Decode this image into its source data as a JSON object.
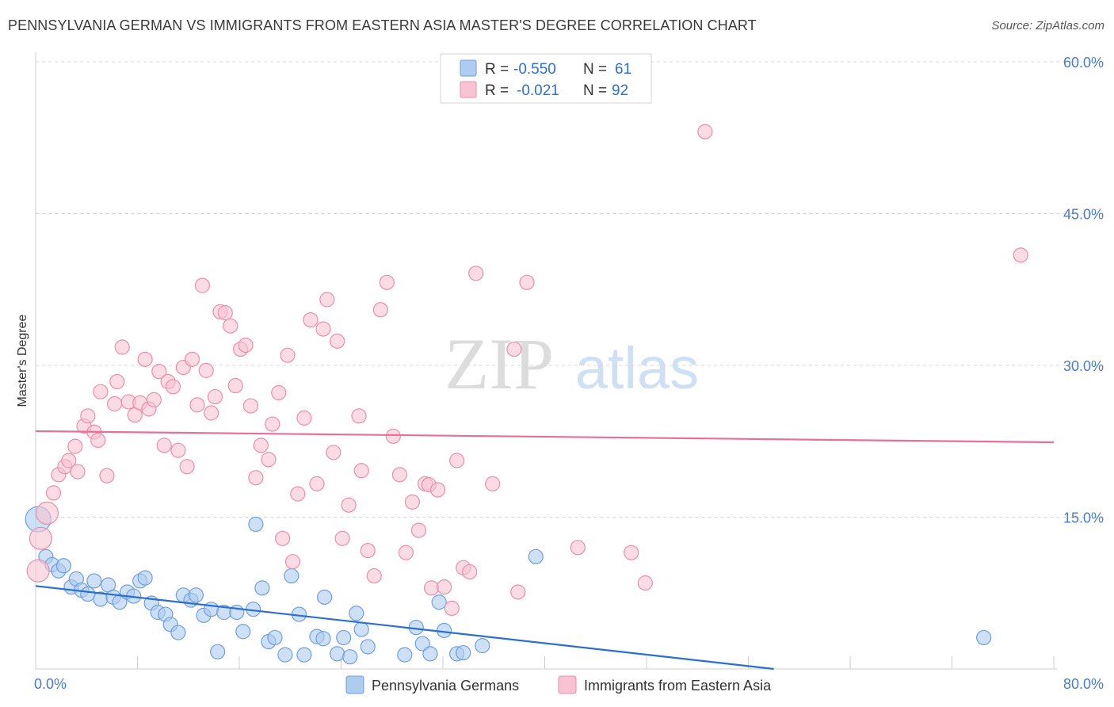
{
  "chart_data": {
    "type": "scatter",
    "title": "PENNSYLVANIA GERMAN VS IMMIGRANTS FROM EASTERN ASIA MASTER'S DEGREE CORRELATION CHART",
    "source": "Source: ZipAtlas.com",
    "xlabel": "",
    "ylabel": "Master's Degree",
    "xlim": [
      0,
      80
    ],
    "ylim": [
      0,
      60
    ],
    "x_tick_labels": [
      "0.0%",
      "80.0%"
    ],
    "y_ticks": [
      15,
      30,
      45,
      60
    ],
    "y_tick_labels": [
      "15.0%",
      "30.0%",
      "45.0%",
      "60.0%"
    ],
    "watermark": {
      "zip": "ZIP",
      "atlas": "atlas"
    },
    "legend": {
      "rows": [
        {
          "r_label": "R =",
          "r_value": "-0.550",
          "n_label": "N =",
          "n_value": "61"
        },
        {
          "r_label": "R =",
          "r_value": "-0.021",
          "n_label": "N =",
          "n_value": "92"
        }
      ]
    },
    "colors": {
      "blue_fill": "#aecbf0",
      "blue_stroke": "#6f9fde",
      "blue_line": "#2a6fcf",
      "pink_fill": "#f8c3d2",
      "pink_stroke": "#ec8eab",
      "pink_line": "#e5709a",
      "grid": "#d8d8d8",
      "tick_text": "#4a7bc8"
    },
    "series": [
      {
        "name": "Pennsylvania Germans",
        "trend": {
          "x0": 0,
          "y0": 8.2,
          "x1": 58,
          "y1": 0
        },
        "points": [
          [
            0.2,
            14.8
          ],
          [
            0.8,
            11.1
          ],
          [
            1.3,
            10.3
          ],
          [
            1.8,
            9.7
          ],
          [
            2.2,
            10.2
          ],
          [
            2.8,
            8.1
          ],
          [
            3.2,
            8.9
          ],
          [
            3.6,
            7.8
          ],
          [
            4.1,
            7.4
          ],
          [
            4.6,
            8.7
          ],
          [
            5.1,
            6.9
          ],
          [
            5.7,
            8.3
          ],
          [
            6.1,
            7.1
          ],
          [
            6.6,
            6.6
          ],
          [
            7.2,
            7.6
          ],
          [
            7.7,
            7.2
          ],
          [
            8.2,
            8.7
          ],
          [
            8.6,
            9.0
          ],
          [
            9.1,
            6.5
          ],
          [
            9.6,
            5.6
          ],
          [
            10.2,
            5.4
          ],
          [
            10.6,
            4.4
          ],
          [
            11.2,
            3.6
          ],
          [
            11.6,
            7.3
          ],
          [
            12.2,
            6.8
          ],
          [
            12.6,
            7.3
          ],
          [
            13.2,
            5.3
          ],
          [
            13.8,
            5.9
          ],
          [
            14.3,
            1.7
          ],
          [
            14.8,
            5.6
          ],
          [
            15.8,
            5.6
          ],
          [
            16.3,
            3.7
          ],
          [
            17.1,
            5.9
          ],
          [
            17.3,
            14.3
          ],
          [
            17.8,
            8.0
          ],
          [
            18.3,
            2.7
          ],
          [
            18.8,
            3.1
          ],
          [
            19.6,
            1.4
          ],
          [
            20.1,
            9.2
          ],
          [
            20.7,
            5.4
          ],
          [
            21.1,
            1.4
          ],
          [
            22.1,
            3.2
          ],
          [
            22.6,
            3.0
          ],
          [
            22.7,
            7.1
          ],
          [
            23.7,
            1.5
          ],
          [
            24.2,
            3.1
          ],
          [
            24.7,
            1.2
          ],
          [
            25.2,
            5.5
          ],
          [
            25.6,
            3.9
          ],
          [
            26.1,
            2.2
          ],
          [
            29.0,
            1.4
          ],
          [
            29.9,
            4.1
          ],
          [
            30.4,
            2.5
          ],
          [
            31.0,
            1.5
          ],
          [
            31.7,
            6.6
          ],
          [
            32.1,
            3.8
          ],
          [
            33.1,
            1.5
          ],
          [
            33.6,
            1.6
          ],
          [
            35.1,
            2.3
          ],
          [
            39.3,
            11.1
          ],
          [
            74.5,
            3.1
          ]
        ]
      },
      {
        "name": "Immigrants from Eastern Asia",
        "trend": {
          "x0": 0,
          "y0": 23.5,
          "x1": 80,
          "y1": 22.4
        },
        "points": [
          [
            0.2,
            9.7
          ],
          [
            0.4,
            12.9
          ],
          [
            0.9,
            15.4
          ],
          [
            1.4,
            17.4
          ],
          [
            1.8,
            19.2
          ],
          [
            2.3,
            20.0
          ],
          [
            2.6,
            20.6
          ],
          [
            3.1,
            22.0
          ],
          [
            3.3,
            19.5
          ],
          [
            3.8,
            24.0
          ],
          [
            4.1,
            25.0
          ],
          [
            4.6,
            23.4
          ],
          [
            4.9,
            22.6
          ],
          [
            5.1,
            27.4
          ],
          [
            5.6,
            19.1
          ],
          [
            6.2,
            26.2
          ],
          [
            6.4,
            28.4
          ],
          [
            6.8,
            31.8
          ],
          [
            7.3,
            26.4
          ],
          [
            7.8,
            25.1
          ],
          [
            8.2,
            26.3
          ],
          [
            8.6,
            30.6
          ],
          [
            8.9,
            25.7
          ],
          [
            9.3,
            26.6
          ],
          [
            9.7,
            29.4
          ],
          [
            10.1,
            22.1
          ],
          [
            10.4,
            28.4
          ],
          [
            10.8,
            27.9
          ],
          [
            11.2,
            21.6
          ],
          [
            11.6,
            29.8
          ],
          [
            11.9,
            20.0
          ],
          [
            12.3,
            30.6
          ],
          [
            12.7,
            26.1
          ],
          [
            13.1,
            37.9
          ],
          [
            13.4,
            29.5
          ],
          [
            13.8,
            25.3
          ],
          [
            14.1,
            26.9
          ],
          [
            14.5,
            35.3
          ],
          [
            14.9,
            35.2
          ],
          [
            15.3,
            33.9
          ],
          [
            15.7,
            28.0
          ],
          [
            16.1,
            31.6
          ],
          [
            16.5,
            32.0
          ],
          [
            16.9,
            26.0
          ],
          [
            17.3,
            18.9
          ],
          [
            17.7,
            22.1
          ],
          [
            18.3,
            20.7
          ],
          [
            18.6,
            24.2
          ],
          [
            19.1,
            27.3
          ],
          [
            19.4,
            12.9
          ],
          [
            19.8,
            31.0
          ],
          [
            20.2,
            10.6
          ],
          [
            20.6,
            17.3
          ],
          [
            21.1,
            24.8
          ],
          [
            21.6,
            34.5
          ],
          [
            22.1,
            18.3
          ],
          [
            22.6,
            33.6
          ],
          [
            22.9,
            36.5
          ],
          [
            23.4,
            21.4
          ],
          [
            23.7,
            32.4
          ],
          [
            24.1,
            12.9
          ],
          [
            24.6,
            16.2
          ],
          [
            25.4,
            25.0
          ],
          [
            25.6,
            19.6
          ],
          [
            26.1,
            11.7
          ],
          [
            26.6,
            9.2
          ],
          [
            27.1,
            35.5
          ],
          [
            27.6,
            38.2
          ],
          [
            28.1,
            23.0
          ],
          [
            28.6,
            19.2
          ],
          [
            29.1,
            11.5
          ],
          [
            29.6,
            16.5
          ],
          [
            30.1,
            13.7
          ],
          [
            30.6,
            18.3
          ],
          [
            30.9,
            18.2
          ],
          [
            31.1,
            8.0
          ],
          [
            31.6,
            17.7
          ],
          [
            32.1,
            8.1
          ],
          [
            32.7,
            6.0
          ],
          [
            33.1,
            20.6
          ],
          [
            33.6,
            10.0
          ],
          [
            34.1,
            9.6
          ],
          [
            34.6,
            39.1
          ],
          [
            35.9,
            18.3
          ],
          [
            37.6,
            31.6
          ],
          [
            37.9,
            7.6
          ],
          [
            38.6,
            38.2
          ],
          [
            42.6,
            12.0
          ],
          [
            46.8,
            11.5
          ],
          [
            47.9,
            8.5
          ],
          [
            52.6,
            53.1
          ],
          [
            77.4,
            40.9
          ]
        ]
      }
    ]
  }
}
